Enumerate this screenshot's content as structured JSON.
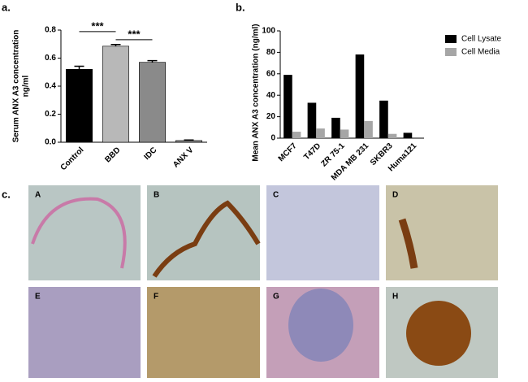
{
  "panel_labels": [
    "a.",
    "b.",
    "c."
  ],
  "chart_data": [
    {
      "type": "bar",
      "ylabel": [
        "Serum ANX A3 concentration",
        "ng/ml"
      ],
      "categories": [
        "Control",
        "BBD",
        "IDC",
        "ANX V"
      ],
      "values": [
        0.52,
        0.685,
        0.57,
        0.012
      ],
      "errors": [
        0.022,
        0.012,
        0.012,
        0.004
      ],
      "colors": [
        "#000000",
        "#b8b8b8",
        "#8a8a8a",
        "#8a8a8a"
      ],
      "ylim": [
        0,
        0.8
      ],
      "yticks": [
        {
          "value": 0,
          "label": "0.0"
        },
        0.2,
        0.4,
        0.6,
        0.8
      ],
      "annotations": [
        "***",
        "***"
      ]
    },
    {
      "type": "grouped_bar",
      "ylabel": "Mean ANX A3 concentration (ng/ml)",
      "categories": [
        "MCF7",
        "T47D",
        "ZR 75-1",
        "MDA MB 231",
        "SKBR3",
        "Huma121"
      ],
      "series": [
        {
          "name": "Cell Lysate",
          "color": "#000000",
          "values": [
            59,
            33,
            19,
            78,
            35,
            5
          ]
        },
        {
          "name": "Cell Media",
          "color": "#a6a6a6",
          "values": [
            6,
            9,
            8,
            16,
            4,
            0
          ]
        }
      ],
      "ylim": [
        0,
        100
      ],
      "yticks": [
        0,
        20,
        40,
        60,
        80,
        100
      ],
      "legend": "upper right"
    }
  ],
  "micrographs": [
    "A",
    "B",
    "C",
    "D",
    "E",
    "F",
    "G",
    "H"
  ]
}
